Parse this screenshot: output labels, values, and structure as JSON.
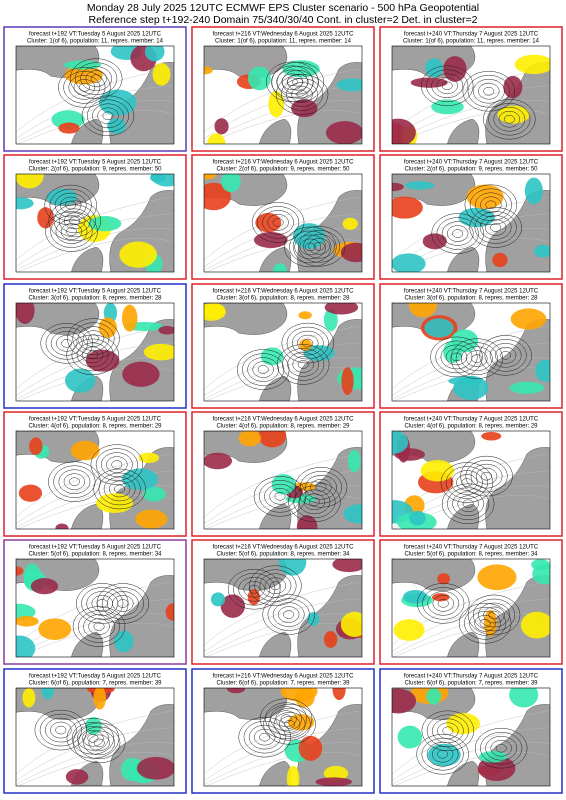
{
  "header": {
    "title": "Monday 28 July 2025 12UTC ECMWF EPS Cluster scenario - 500 hPa Geopotential",
    "subtitle": "Reference step t+192-240 Domain 75/340/30/40 Cont. in cluster=2 Det. in cluster=2"
  },
  "panels": [
    {
      "title": "forecast t+192 VT:Tuesday 5 August 2025 12UTC",
      "subtitle": "Cluster: 1(of 6), population: 11, repres. member: 14",
      "frame": "#5a3cb4"
    },
    {
      "title": "forecast t+216 VT:Wednesday 6 August 2025 12UTC",
      "subtitle": "Cluster: 1(of 6), population: 11, repres. member: 14",
      "frame": "#e0202a"
    },
    {
      "title": "forecast t+240 VT:Thursday 7 August 2025 12UTC",
      "subtitle": "Cluster: 1(of 6), population: 11, repres. member: 14",
      "frame": "#e0202a"
    },
    {
      "title": "forecast t+192 VT:Tuesday 5 August 2025 12UTC",
      "subtitle": "Cluster: 2(of 6), population: 9, repres. member: 50",
      "frame": "#e0202a"
    },
    {
      "title": "forecast t+216 VT:Wednesday 6 August 2025 12UTC",
      "subtitle": "Cluster: 2(of 6), population: 9, repres. member: 50",
      "frame": "#e0202a"
    },
    {
      "title": "forecast t+240 VT:Thursday 7 August 2025 12UTC",
      "subtitle": "Cluster: 2(of 6), population: 9, repres. member: 50",
      "frame": "#e0202a"
    },
    {
      "title": "forecast t+192 VT:Tuesday 5 August 2025 12UTC",
      "subtitle": "Cluster: 3(of 6), population: 8, repres. member: 28",
      "frame": "#2030c8"
    },
    {
      "title": "forecast t+216 VT:Wednesday 6 August 2025 12UTC",
      "subtitle": "Cluster: 3(of 6), population: 8, repres. member: 28",
      "frame": "#e0202a"
    },
    {
      "title": "forecast t+240 VT:Thursday 7 August 2025 12UTC",
      "subtitle": "Cluster: 3(of 6), population: 8, repres. member: 28",
      "frame": "#e0202a"
    },
    {
      "title": "forecast t+192 VT:Tuesday 5 August 2025 12UTC",
      "subtitle": "Cluster: 4(of 6), population: 8, repres. member: 29",
      "frame": "#e0202a"
    },
    {
      "title": "forecast t+216 VT:Wednesday 6 August 2025 12UTC",
      "subtitle": "Cluster: 4(of 6), population: 8, repres. member: 29",
      "frame": "#e0202a"
    },
    {
      "title": "forecast t+240 VT:Thursday 7 August 2025 12UTC",
      "subtitle": "Cluster: 4(of 6), population: 8, repres. member: 29",
      "frame": "#e0202a"
    },
    {
      "title": "forecast t+192 VT:Tuesday 5 August 2025 12UTC",
      "subtitle": "Cluster: 5(of 6), population: 8, repres. member: 34",
      "frame": "#8a3c9c"
    },
    {
      "title": "forecast t+216 VT:Wednesday 6 August 2025 12UTC",
      "subtitle": "Cluster: 5(of 6), population: 8, repres. member: 34",
      "frame": "#e0202a"
    },
    {
      "title": "forecast t+240 VT:Thursday 7 August 2025 12UTC",
      "subtitle": "Cluster: 5(of 6), population: 8, repres. member: 34",
      "frame": "#e0202a"
    },
    {
      "title": "forecast t+192 VT:Tuesday 5 August 2025 12UTC",
      "subtitle": "Cluster: 6(of 6), population: 7, repres. member: 39",
      "frame": "#2030c8"
    },
    {
      "title": "forecast t+216 VT:Wednesday 6 August 2025 12UTC",
      "subtitle": "Cluster: 6(of 6), population: 7, repres. member: 39",
      "frame": "#2030c8"
    },
    {
      "title": "forecast t+240 VT:Thursday 7 August 2025 12UTC",
      "subtitle": "Cluster: 6(of 6), population: 7, repres. member: 39",
      "frame": "#2030c8"
    }
  ]
}
